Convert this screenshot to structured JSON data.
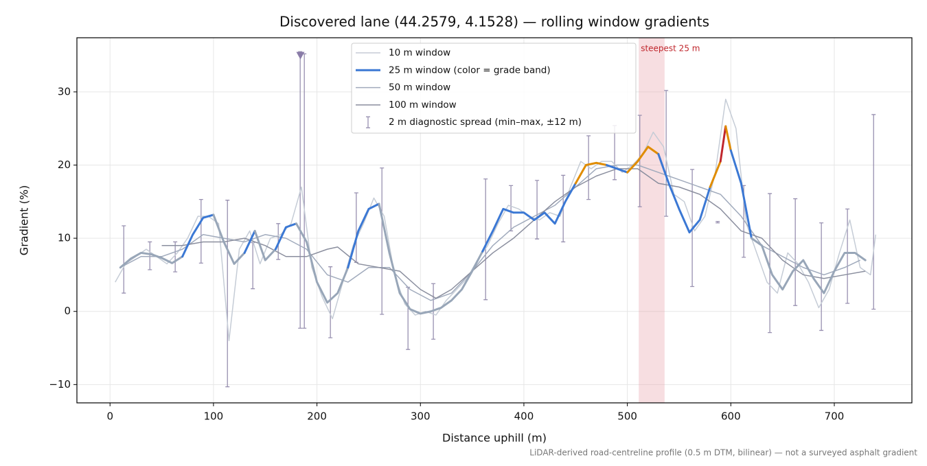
{
  "chart_data": {
    "type": "line",
    "title": "Discovered lane (44.2579, 4.1528) — rolling window gradients",
    "xlabel": "Distance uphill (m)",
    "ylabel": "Gradient (%)",
    "footnote": "LiDAR-derived road-centreline profile (0.5 m DTM, bilinear) — not a surveyed asphalt gradient",
    "xlim": [
      -32,
      775
    ],
    "ylim": [
      -12.5,
      37.4
    ],
    "xticks": [
      0,
      100,
      200,
      300,
      400,
      500,
      600,
      700
    ],
    "yticks": [
      {
        "value": -10,
        "label": "−10"
      },
      0,
      10,
      20,
      30
    ],
    "grid": true,
    "highlight": {
      "label": "steepest 25 m",
      "x": [
        511,
        536
      ],
      "color": "#e8a0a8"
    },
    "series": [
      {
        "name": "10 m window",
        "color": "#c5ccd6",
        "x": [
          5,
          15,
          25,
          35,
          45,
          55,
          65,
          75,
          85,
          95,
          105,
          115,
          125,
          135,
          145,
          155,
          165,
          175,
          185,
          195,
          205,
          215,
          225,
          235,
          245,
          255,
          265,
          275,
          285,
          295,
          305,
          315,
          325,
          335,
          345,
          355,
          365,
          375,
          385,
          395,
          405,
          415,
          425,
          435,
          445,
          455,
          465,
          475,
          485,
          495,
          505,
          515,
          525,
          535,
          545,
          555,
          565,
          575,
          585,
          595,
          605,
          615,
          625,
          635,
          645,
          655,
          665,
          675,
          685,
          695,
          705,
          715,
          725,
          735,
          740
        ],
        "values": [
          4,
          6.5,
          7.5,
          8.5,
          7.5,
          6.5,
          8,
          10,
          13,
          13,
          12,
          -4,
          8.5,
          11,
          6.5,
          10,
          10.5,
          12,
          17,
          6,
          2,
          -1,
          4,
          9,
          12,
          15.5,
          13,
          5,
          1,
          -0.5,
          0,
          -0.5,
          1.5,
          3,
          4.5,
          7,
          9,
          12,
          14.5,
          14,
          13,
          12.5,
          13.5,
          13,
          17,
          20.5,
          19.5,
          20.5,
          20.5,
          19,
          20,
          21.5,
          24.5,
          22.5,
          16,
          15,
          11,
          13,
          19,
          29,
          25,
          12,
          8,
          4,
          2.5,
          8,
          6.5,
          4,
          0.5,
          3,
          8,
          12.5,
          6,
          5,
          10.5
        ]
      },
      {
        "name": "25 m window (color = grade band)",
        "color": "#3b78d4",
        "grade_bands": [
          {
            "max": 10,
            "color": "#98a6b8"
          },
          {
            "max": 20,
            "color": "#3b78d4"
          },
          {
            "max": 25,
            "color": "#e08c00"
          },
          {
            "max": 100,
            "color": "#c0272d"
          }
        ],
        "x": [
          10,
          20,
          30,
          40,
          50,
          60,
          70,
          80,
          90,
          100,
          110,
          120,
          130,
          140,
          150,
          160,
          170,
          180,
          190,
          200,
          210,
          220,
          230,
          240,
          250,
          260,
          270,
          280,
          290,
          300,
          310,
          320,
          330,
          340,
          350,
          360,
          370,
          380,
          390,
          400,
          410,
          420,
          430,
          440,
          450,
          460,
          470,
          480,
          490,
          500,
          510,
          520,
          530,
          540,
          550,
          560,
          570,
          580,
          590,
          595,
          600,
          610,
          620,
          630,
          640,
          650,
          660,
          670,
          680,
          690,
          700,
          710,
          720,
          730
        ],
        "values": [
          6,
          7.2,
          8,
          7.8,
          7.3,
          6.6,
          7.5,
          10.5,
          12.8,
          13.2,
          9.5,
          6.5,
          8,
          11,
          7,
          8.5,
          11.5,
          12,
          9.5,
          4,
          1.2,
          2.5,
          6,
          11,
          14,
          14.7,
          8,
          2.5,
          0.3,
          -0.3,
          0,
          0.5,
          1.5,
          3,
          5.5,
          8.2,
          11,
          14,
          13.5,
          13.5,
          12.5,
          13.5,
          12,
          15,
          17.5,
          20,
          20.3,
          20,
          19.5,
          19,
          20.5,
          22.5,
          21.5,
          17.5,
          14,
          10.8,
          12.5,
          17,
          20.5,
          25.3,
          22,
          17.5,
          10,
          9,
          5,
          3,
          5.5,
          7,
          4.5,
          2.5,
          5.5,
          8,
          8,
          7
        ]
      },
      {
        "name": "50 m window",
        "color": "#a0aabc",
        "x": [
          10,
          30,
          50,
          70,
          90,
          110,
          130,
          150,
          170,
          190,
          210,
          230,
          250,
          270,
          290,
          310,
          330,
          350,
          370,
          390,
          410,
          430,
          450,
          470,
          490,
          510,
          530,
          550,
          570,
          590,
          610,
          630,
          650,
          670,
          690,
          710,
          725
        ],
        "values": [
          6,
          7.5,
          7.5,
          8.5,
          10.5,
          10,
          9.5,
          10.5,
          10,
          8.5,
          5,
          4,
          6,
          6,
          3,
          1.5,
          2.5,
          5.5,
          9,
          11.5,
          13,
          14.5,
          17,
          19.5,
          20,
          20,
          19,
          18,
          17,
          16,
          13,
          9,
          7.5,
          6,
          5,
          6,
          7
        ]
      },
      {
        "name": "100 m window",
        "color": "#8a8e9e",
        "x": [
          50,
          70,
          90,
          110,
          130,
          150,
          170,
          190,
          210,
          220,
          240,
          260,
          280,
          300,
          315,
          330,
          350,
          370,
          390,
          410,
          430,
          450,
          470,
          490,
          510,
          530,
          550,
          570,
          590,
          610,
          630,
          650,
          670,
          690,
          710,
          730
        ],
        "values": [
          9,
          9,
          9.5,
          9.5,
          10,
          9,
          7.5,
          7.5,
          8.5,
          8.8,
          6.5,
          6,
          5.5,
          3,
          1.8,
          3,
          5.5,
          8,
          10,
          12.5,
          15,
          17,
          18.5,
          19.5,
          19.5,
          17.5,
          17,
          16,
          14,
          11,
          10,
          7,
          5,
          4.5,
          5,
          5.5
        ]
      }
    ],
    "error_bars": {
      "name": "2 m diagnostic spread (min–max, ±12 m)",
      "color": "#9890b0",
      "x": [
        13.3,
        38.5,
        63,
        88,
        113.5,
        138,
        162.6,
        183.8,
        187.8,
        213,
        238,
        262.8,
        288,
        312.5,
        363,
        387.5,
        412.7,
        438,
        462.5,
        487.7,
        512,
        537.5,
        562.7,
        587.3,
        612.5,
        637.7,
        662.3,
        687.5,
        712.7,
        738
      ],
      "low": [
        2.5,
        5.7,
        5.4,
        6.6,
        -10.3,
        3.1,
        7.1,
        -2.3,
        -2.3,
        -3.6,
        6.7,
        -0.4,
        -5.2,
        -3.8,
        1.6,
        11,
        9.9,
        9.5,
        15.3,
        18,
        14.3,
        13,
        3.4,
        12.1,
        7.4,
        -2.9,
        0.8,
        -2.6,
        1.1,
        0.3
      ],
      "high": [
        11.7,
        9.5,
        9.5,
        15.3,
        15.2,
        9.4,
        12,
        35.5,
        35.2,
        6.1,
        16.2,
        19.6,
        3.3,
        3.8,
        18.1,
        17.2,
        17.9,
        18.6,
        24,
        25.4,
        26.8,
        30.2,
        19.4,
        12.3,
        17.2,
        16.1,
        15.4,
        12.1,
        14,
        26.9
      ]
    },
    "marker": {
      "x": 184,
      "y": 35,
      "color": "#8a7ca8"
    }
  }
}
